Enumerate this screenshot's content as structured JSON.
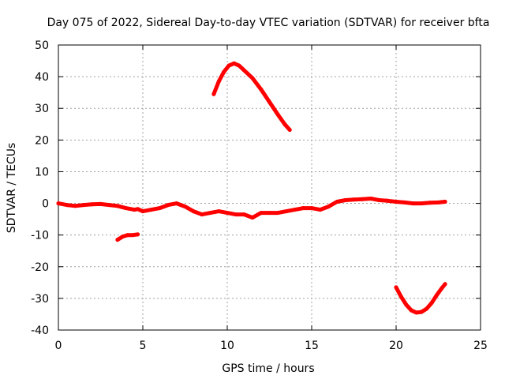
{
  "chart_data": {
    "type": "line",
    "title": "Day 075 of 2022, Sidereal Day-to-day VTEC variation (SDTVAR) for receiver bfta",
    "xlabel": "GPS time / hours",
    "ylabel": "SDTVAR / TECUs",
    "xlim": [
      0,
      25
    ],
    "ylim": [
      -40,
      50
    ],
    "xticks": [
      0,
      5,
      10,
      15,
      20,
      25
    ],
    "yticks": [
      -40,
      -30,
      -20,
      -10,
      0,
      10,
      20,
      30,
      40,
      50
    ],
    "grid": true,
    "color": "#ff0000",
    "series": [
      {
        "name": "main-arc",
        "x": [
          0,
          0.5,
          1,
          1.5,
          2,
          2.5,
          3,
          3.5,
          4,
          4.5,
          4.7,
          5,
          5.5,
          6,
          6.5,
          7,
          7.5,
          8,
          8.5,
          9,
          9.5,
          10,
          10.5,
          11,
          11.5,
          12,
          12.5,
          13,
          13.5,
          14,
          14.5,
          15,
          15.5,
          16,
          16.5,
          17,
          17.5,
          18,
          18.5,
          19,
          19.5,
          20,
          20.5,
          21,
          21.5,
          22,
          22.5,
          22.9
        ],
        "y": [
          0,
          -0.5,
          -0.8,
          -0.5,
          -0.3,
          -0.2,
          -0.5,
          -0.8,
          -1.5,
          -2,
          -1.8,
          -2.5,
          -2,
          -1.5,
          -0.5,
          0,
          -1,
          -2.5,
          -3.5,
          -3,
          -2.5,
          -3,
          -3.5,
          -3.5,
          -4.5,
          -3,
          -3,
          -3,
          -2.5,
          -2,
          -1.5,
          -1.5,
          -2,
          -1,
          0.5,
          1,
          1.2,
          1.3,
          1.5,
          1,
          0.8,
          0.5,
          0.3,
          0,
          0,
          0.2,
          0.3,
          0.5
        ]
      },
      {
        "name": "arc-near-minus-10",
        "x": [
          3.5,
          3.8,
          4.1,
          4.4,
          4.7
        ],
        "y": [
          -11.5,
          -10.5,
          -10,
          -10,
          -9.8
        ]
      },
      {
        "name": "arc-peak-44",
        "x": [
          9.2,
          9.5,
          9.8,
          10.1,
          10.4,
          10.7,
          11.0,
          11.5,
          12.0,
          12.5,
          13.0,
          13.4,
          13.7
        ],
        "y": [
          34.5,
          38.5,
          41.5,
          43.5,
          44.2,
          43.5,
          42,
          39.5,
          36,
          32,
          28,
          25,
          23.2
        ]
      },
      {
        "name": "arc-trough-34",
        "x": [
          20.0,
          20.3,
          20.6,
          20.9,
          21.2,
          21.5,
          21.8,
          22.1,
          22.4,
          22.7,
          22.9
        ],
        "y": [
          -26.5,
          -29.5,
          -32,
          -33.8,
          -34.5,
          -34.3,
          -33.3,
          -31.5,
          -29,
          -26.8,
          -25.5
        ]
      }
    ]
  }
}
